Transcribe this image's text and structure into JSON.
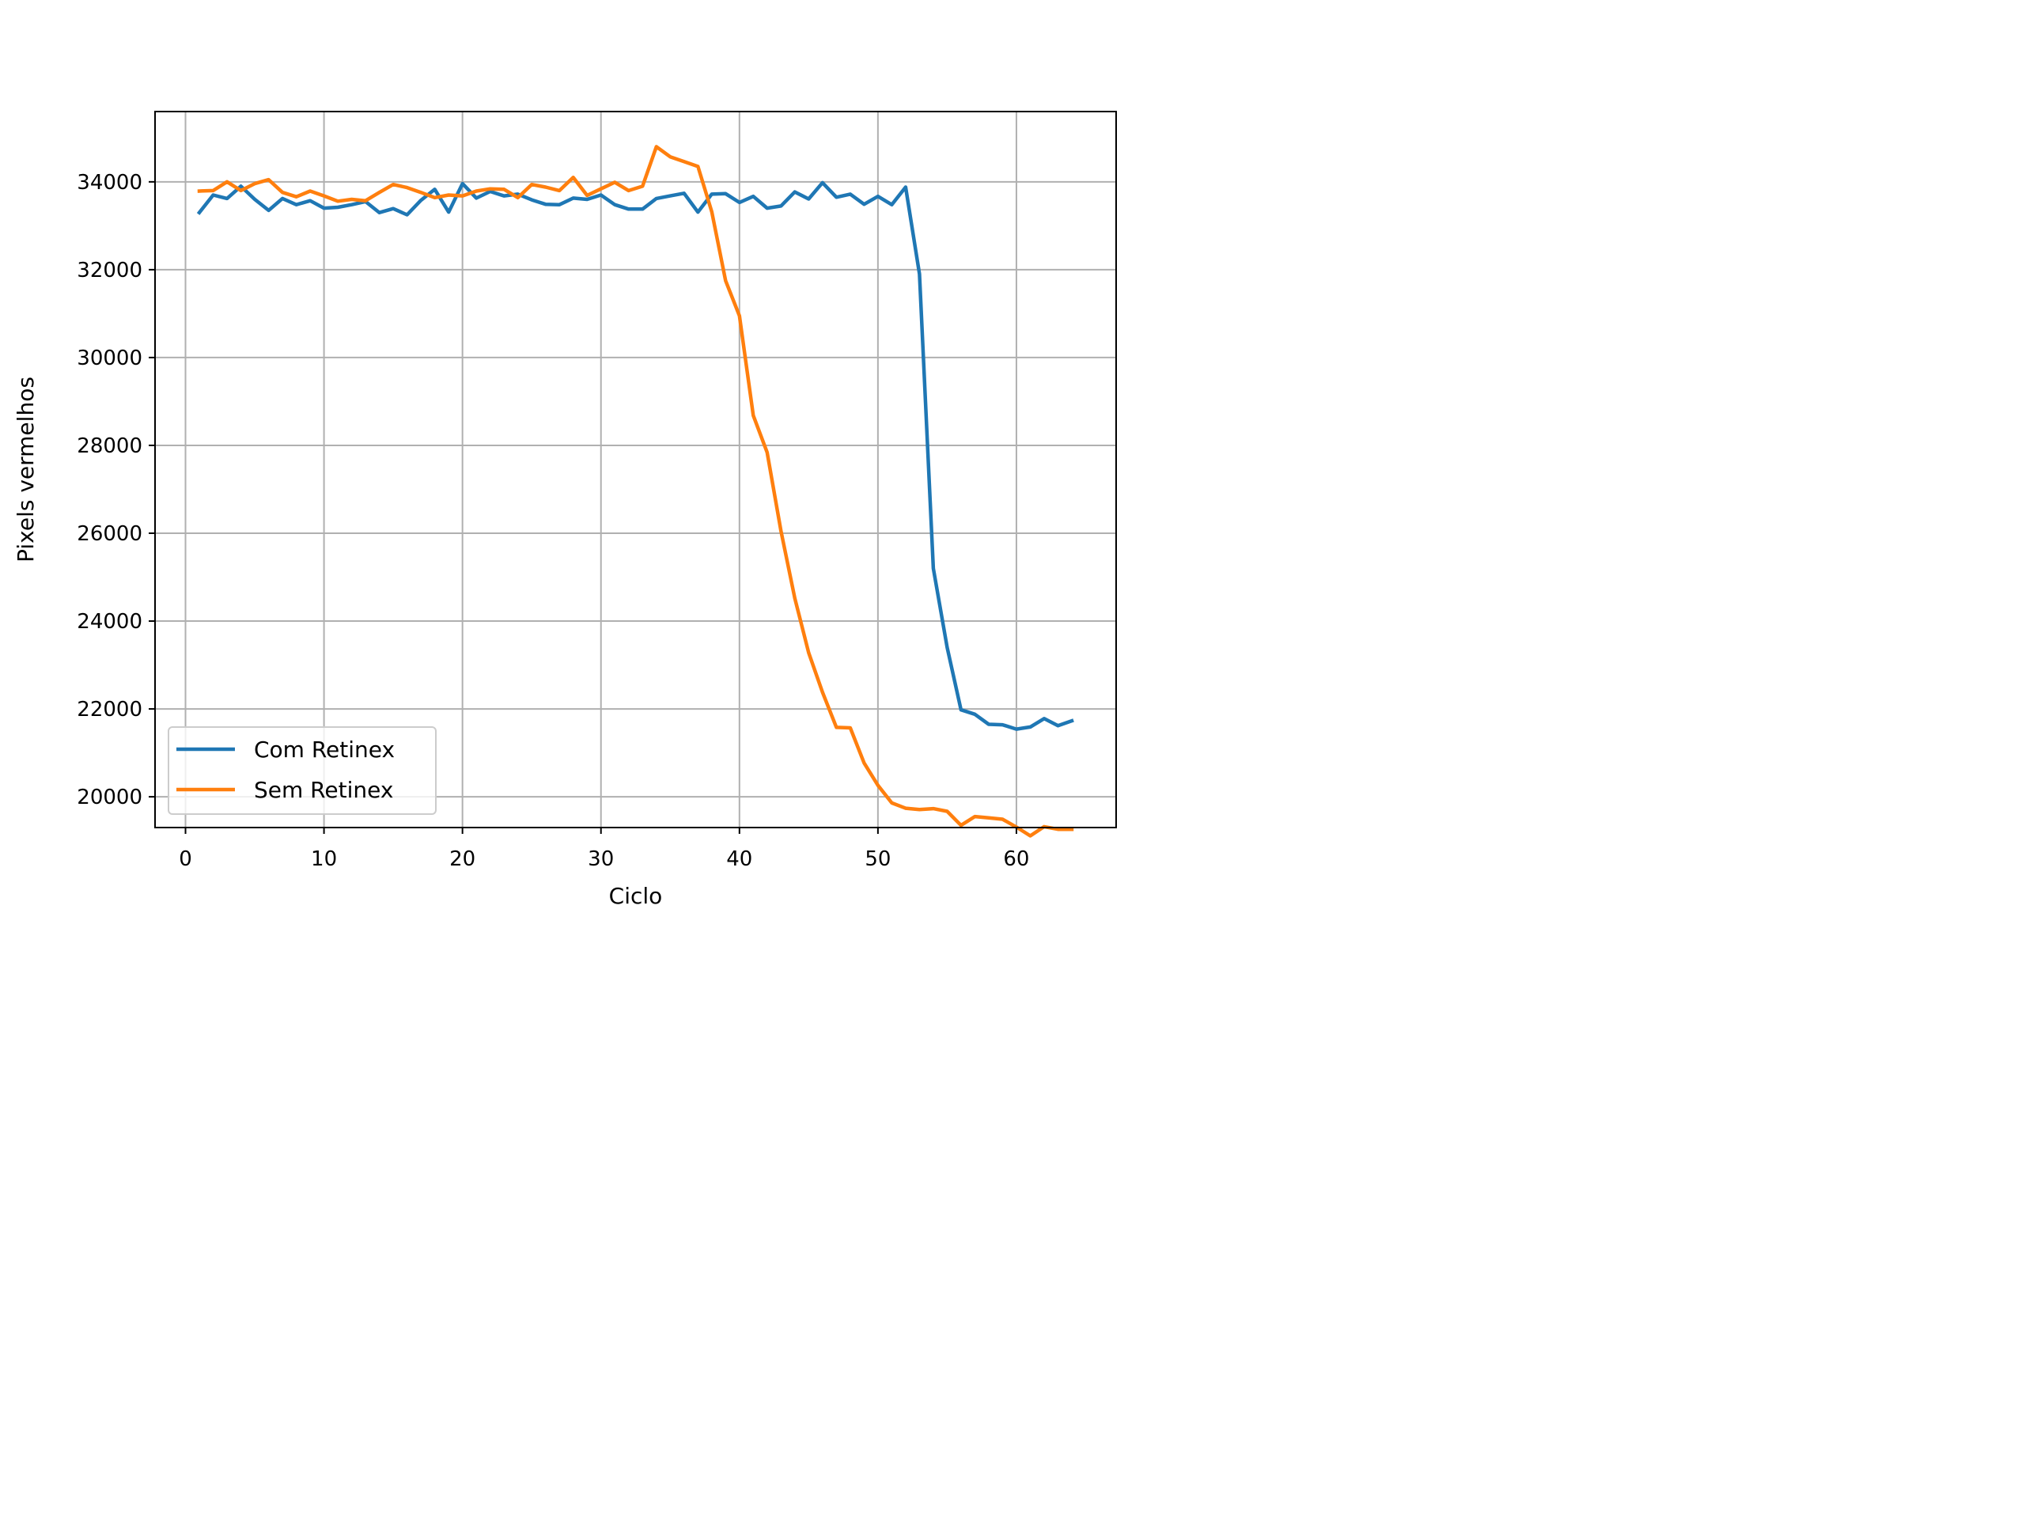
{
  "chart_data": {
    "type": "line",
    "title": "",
    "xlabel": "Ciclo",
    "ylabel": "Pixels vermelhos",
    "xlim": [
      -2.2,
      67.2
    ],
    "ylim": [
      19300,
      35600
    ],
    "x_ticks": [
      0,
      10,
      20,
      30,
      40,
      50,
      60
    ],
    "y_ticks": [
      20000,
      22000,
      24000,
      26000,
      28000,
      30000,
      32000,
      34000
    ],
    "grid": true,
    "legend_position": "lower-left",
    "series": [
      {
        "name": "Com Retinex",
        "color": "#1f77b4",
        "x": [
          1,
          2,
          3,
          4,
          5,
          6,
          7,
          8,
          9,
          10,
          11,
          12,
          13,
          14,
          15,
          16,
          17,
          18,
          19,
          20,
          21,
          22,
          23,
          24,
          25,
          26,
          27,
          28,
          29,
          30,
          31,
          32,
          33,
          34,
          35,
          36,
          37,
          38,
          39,
          40,
          41,
          42,
          43,
          44,
          45,
          46,
          47,
          48,
          49,
          50,
          51,
          52,
          53,
          54,
          55,
          56,
          57,
          58,
          59,
          60,
          61,
          62,
          63,
          64
        ],
        "values": [
          33300,
          33700,
          33620,
          33900,
          33600,
          33350,
          33620,
          33480,
          33570,
          33400,
          33420,
          33480,
          33550,
          33300,
          33390,
          33250,
          33580,
          33830,
          33310,
          33960,
          33630,
          33780,
          33680,
          33720,
          33590,
          33490,
          33480,
          33630,
          33600,
          33700,
          33480,
          33380,
          33380,
          33620,
          33680,
          33740,
          33310,
          33720,
          33730,
          33530,
          33670,
          33400,
          33450,
          33770,
          33610,
          33980,
          33650,
          33720,
          33490,
          33670,
          33480,
          33880,
          31900,
          25200,
          23400,
          21980,
          21880,
          21650,
          21640,
          21540,
          21590,
          21780,
          21620,
          21730
        ]
      },
      {
        "name": "Sem Retinex",
        "color": "#ff7f0e",
        "x": [
          1,
          2,
          3,
          4,
          5,
          6,
          7,
          8,
          9,
          10,
          11,
          12,
          13,
          14,
          15,
          16,
          17,
          18,
          19,
          20,
          21,
          22,
          23,
          24,
          25,
          26,
          27,
          28,
          29,
          30,
          31,
          32,
          33,
          34,
          35,
          36,
          37,
          38,
          39,
          40,
          41,
          42,
          43,
          44,
          45,
          46,
          47,
          48,
          49,
          50,
          51,
          52,
          53,
          54,
          55,
          56,
          57,
          58,
          59,
          60,
          61,
          62,
          63,
          64
        ],
        "values": [
          33790,
          33800,
          34000,
          33800,
          33960,
          34050,
          33760,
          33660,
          33790,
          33680,
          33560,
          33600,
          33570,
          33760,
          33940,
          33870,
          33760,
          33640,
          33700,
          33680,
          33790,
          33840,
          33830,
          33640,
          33940,
          33880,
          33800,
          34100,
          33690,
          33840,
          33990,
          33800,
          33900,
          34800,
          34570,
          34460,
          34350,
          33320,
          31750,
          30950,
          28680,
          27840,
          26050,
          24520,
          23280,
          22380,
          21580,
          21570,
          20770,
          20260,
          19860,
          19740,
          19710,
          19730,
          19670,
          19350,
          19550,
          19520,
          19490,
          19310,
          19110,
          19320,
          19260,
          19260
        ]
      }
    ]
  }
}
